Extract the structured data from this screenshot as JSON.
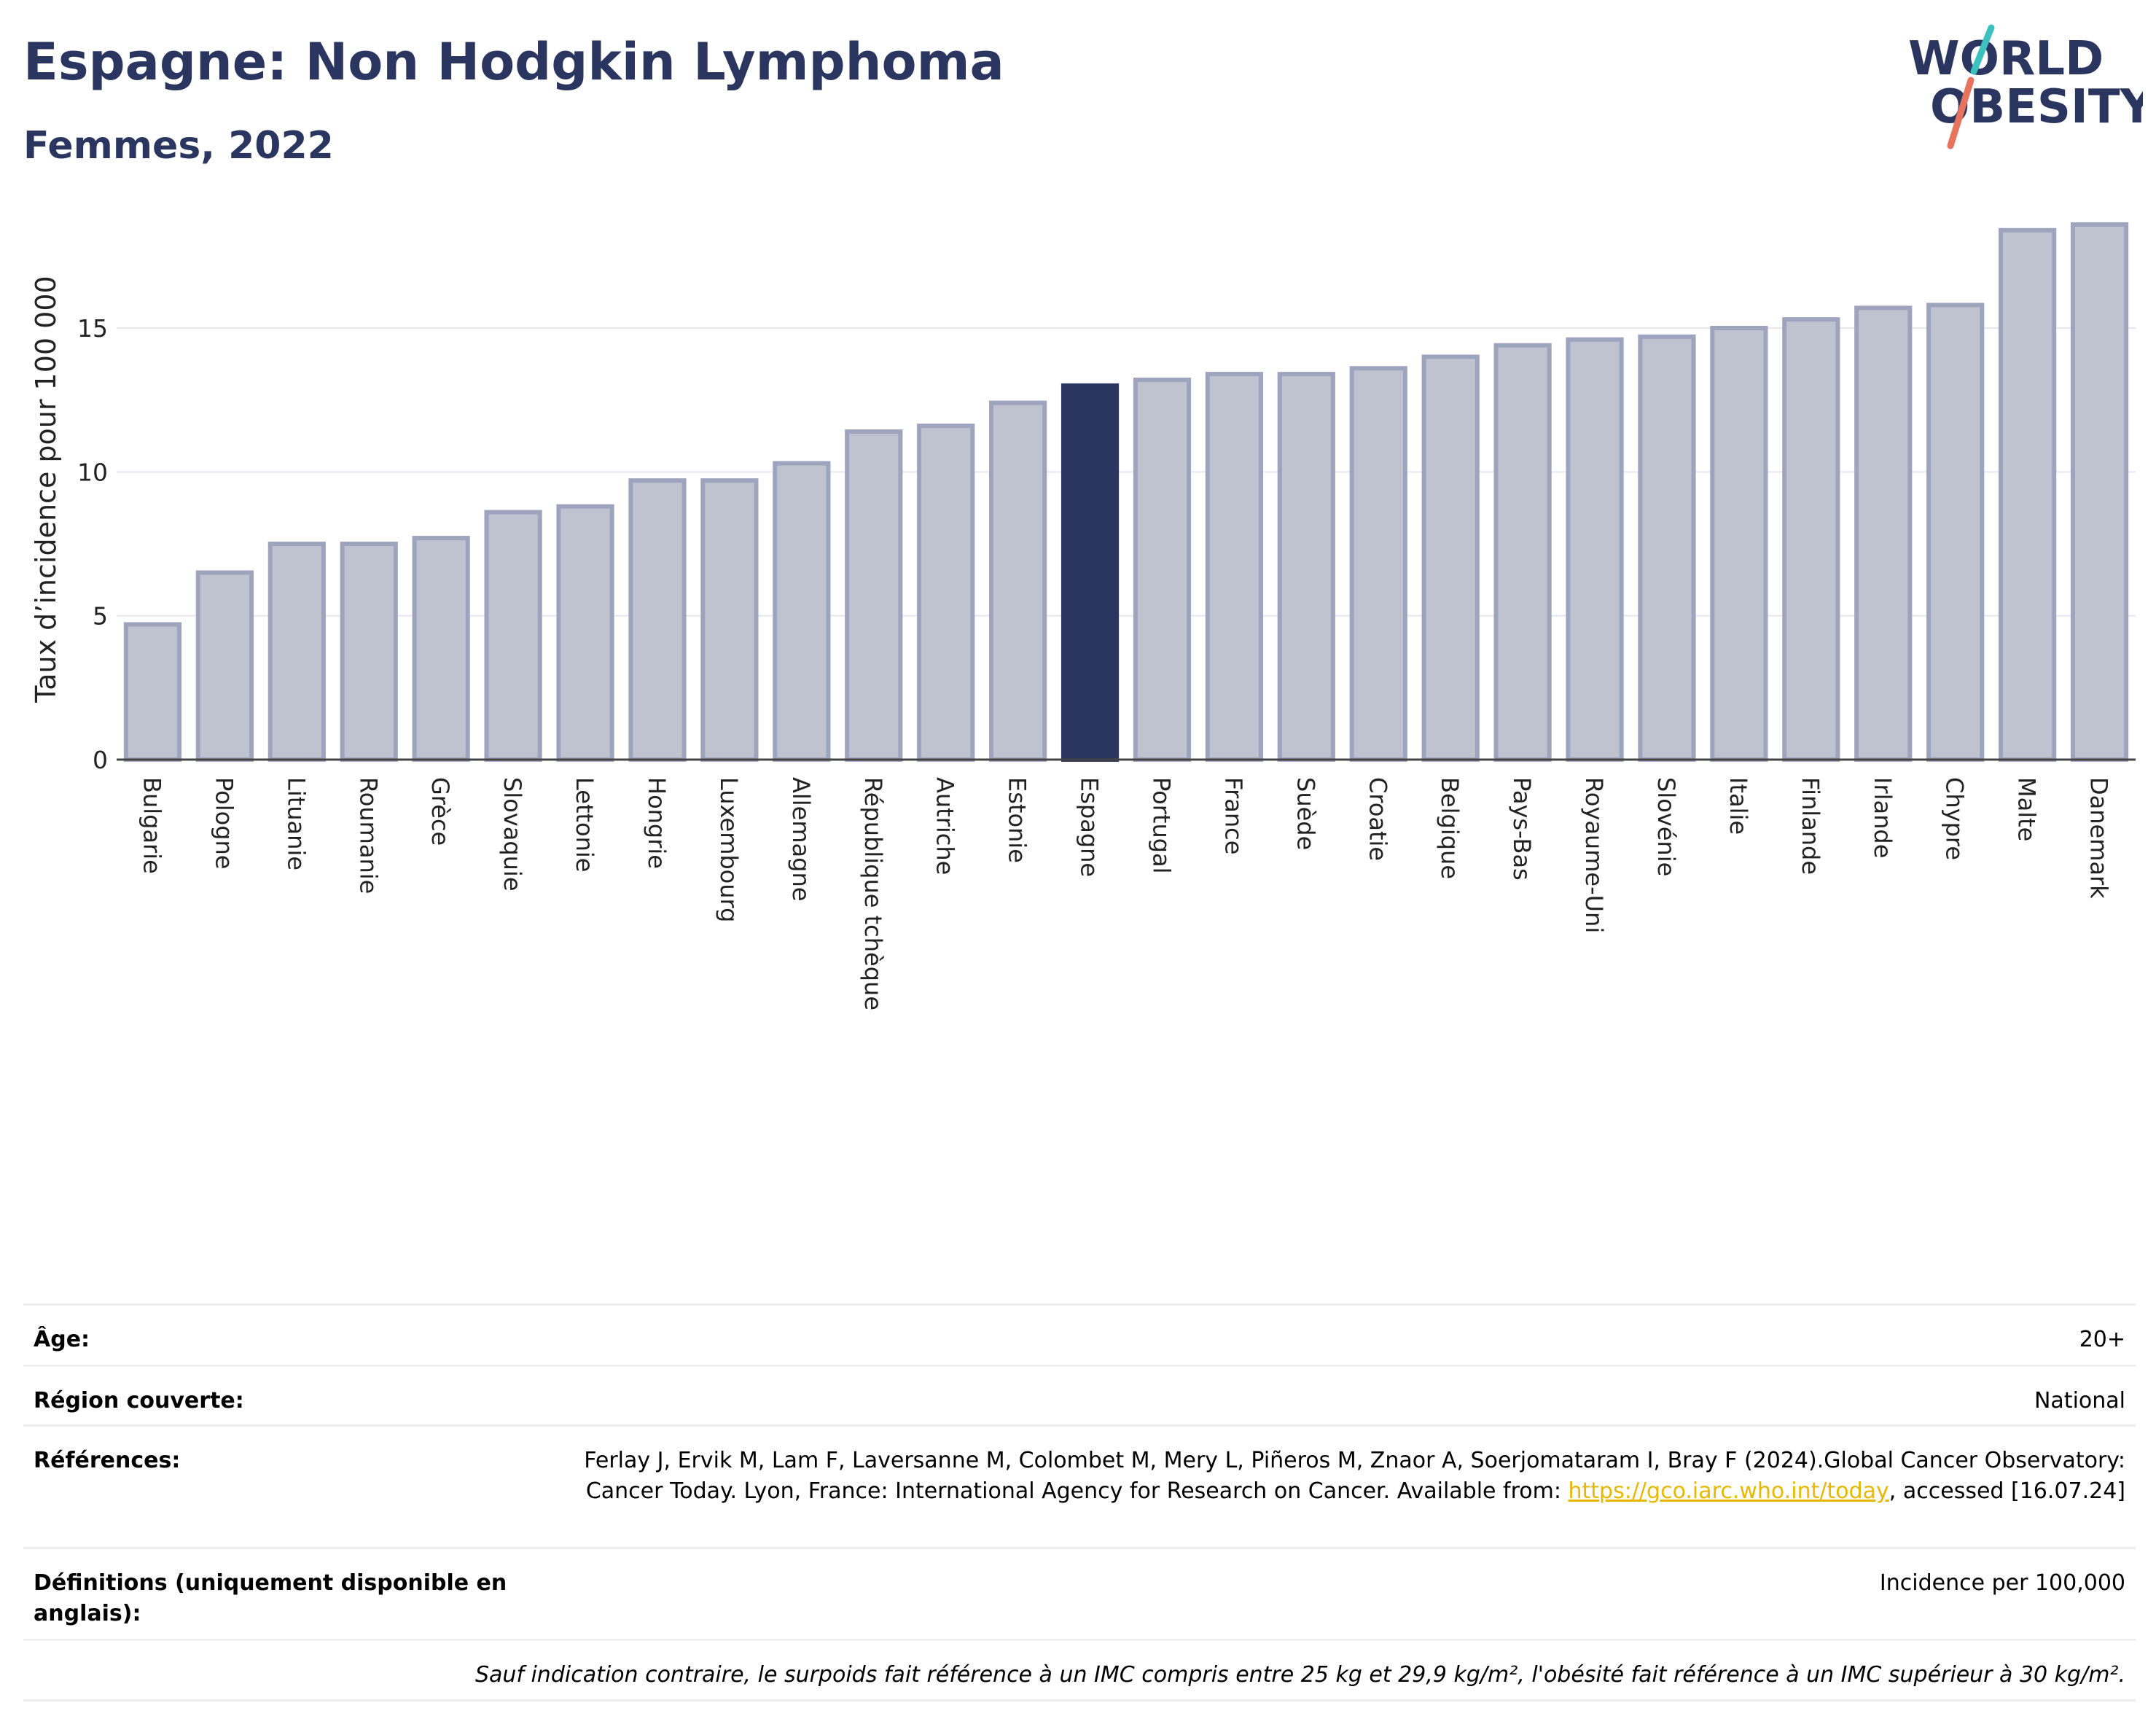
{
  "header": {
    "title": "Espagne: Non Hodgkin Lymphoma",
    "subtitle": "Femmes, 2022"
  },
  "logo": {
    "line1": "WORLD",
    "line2": "OBESITY"
  },
  "colors": {
    "highlight_bar": "#2b3660",
    "other_bar": "#bfc3d0",
    "other_bar_border": "#9ea4bd",
    "grid": "#e6e8ee",
    "brand": "#2b3660",
    "logo_accent_teal": "#3cc1be",
    "logo_accent_coral": "#e8735f"
  },
  "chart_data": {
    "type": "bar",
    "ylabel": "Taux d’incidence pour 100 000",
    "xlabel": "",
    "ylim": [
      0,
      18.8
    ],
    "yticks": [
      0,
      5,
      10,
      15
    ],
    "grid": true,
    "highlight": "Espagne",
    "categories": [
      "Bulgarie",
      "Pologne",
      "Lituanie",
      "Roumanie",
      "Grèce",
      "Slovaquie",
      "Lettonie",
      "Hongrie",
      "Luxembourg",
      "Allemagne",
      "République tchèque",
      "Autriche",
      "Estonie",
      "Espagne",
      "Portugal",
      "France",
      "Suède",
      "Croatie",
      "Belgique",
      "Pays-Bas",
      "Royaume-Uni",
      "Slovénie",
      "Italie",
      "Finlande",
      "Irlande",
      "Chypre",
      "Malte",
      "Danemark"
    ],
    "values": [
      4.7,
      6.5,
      7.5,
      7.5,
      7.7,
      8.6,
      8.8,
      9.7,
      9.7,
      10.3,
      11.4,
      11.6,
      12.4,
      13.0,
      13.2,
      13.4,
      13.4,
      13.6,
      14.0,
      14.4,
      14.6,
      14.7,
      15.0,
      15.3,
      15.7,
      15.8,
      18.4,
      18.6
    ]
  },
  "metadata": {
    "age_label": "Âge:",
    "age_value": "20+",
    "region_label": "Région couverte:",
    "region_value": "National",
    "references_label": "Références:",
    "references_text": "Ferlay J, Ervik M, Lam F, Laversanne M, Colombet M, Mery L, Piñeros M, Znaor A, Soerjomataram I, Bray F (2024).Global Cancer Observatory: Cancer Today. Lyon, France: International Agency for Research on Cancer. Available from: ",
    "references_link": "https://gco.iarc.who.int/today",
    "references_suffix": ", accessed [16.07.24]",
    "definitions_label": "Définitions (uniquement disponible en anglais):",
    "definitions_value": "Incidence per 100,000",
    "note": "Sauf indication contraire, le surpoids fait référence à un IMC compris entre 25 kg et 29,9 kg/m², l'obésité fait référence à un IMC supérieur à 30 kg/m²."
  }
}
